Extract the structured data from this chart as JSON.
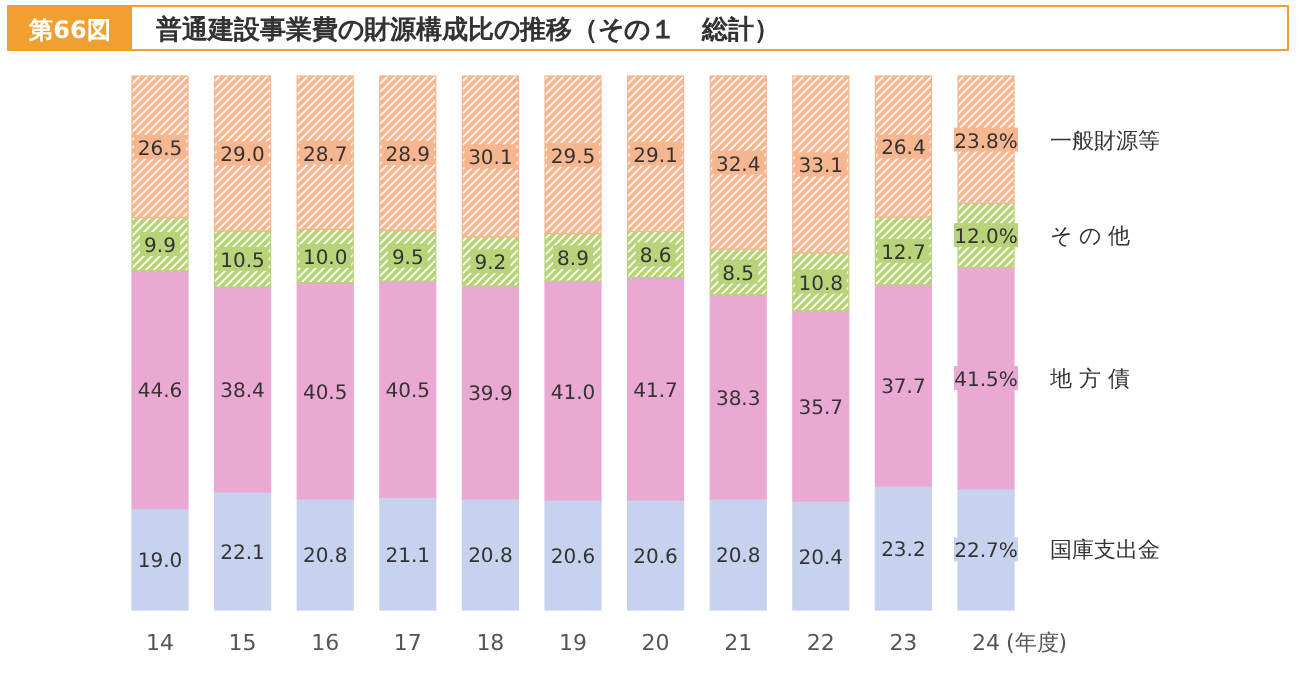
{
  "chart_data": {
    "type": "bar",
    "stacked": true,
    "title": "普通建設事業費の財源構成比の推移（その１　総計）",
    "xlabel": "(年度)",
    "annotations": [
      "第66図"
    ],
    "legend": "right",
    "categories": [
      "14",
      "15",
      "16",
      "17",
      "18",
      "19",
      "20",
      "21",
      "22",
      "23",
      "24"
    ],
    "series": [
      {
        "name": "国庫支出金",
        "color": "#c7d3ee",
        "values": [
          19.0,
          22.1,
          20.8,
          21.1,
          20.8,
          20.6,
          20.6,
          20.8,
          20.4,
          23.2,
          22.7
        ],
        "value_labels": [
          "19.0",
          "22.1",
          "20.8",
          "21.1",
          "20.8",
          "20.6",
          "20.6",
          "20.8",
          "20.4",
          "23.2",
          "22.7%"
        ]
      },
      {
        "name": "地 方 債",
        "color": "#eaa9d2",
        "values": [
          44.6,
          38.4,
          40.5,
          40.5,
          39.9,
          41.0,
          41.7,
          38.3,
          35.7,
          37.7,
          41.5
        ],
        "value_labels": [
          "44.6",
          "38.4",
          "40.5",
          "40.5",
          "39.9",
          "41.0",
          "41.7",
          "38.3",
          "35.7",
          "37.7",
          "41.5%"
        ]
      },
      {
        "name": "そ の 他",
        "color": "#b9d37a",
        "values": [
          9.9,
          10.5,
          10.0,
          9.5,
          9.2,
          8.9,
          8.6,
          8.5,
          10.8,
          12.7,
          12.0
        ],
        "value_labels": [
          "9.9",
          "10.5",
          "10.0",
          "9.5",
          "9.2",
          "8.9",
          "8.6",
          "8.5",
          "10.8",
          "12.7",
          "12.0%"
        ]
      },
      {
        "name": "一般財源等",
        "color": "#f6b690",
        "values": [
          26.5,
          29.0,
          28.7,
          28.9,
          30.1,
          29.5,
          29.1,
          32.4,
          33.1,
          26.4,
          23.8
        ],
        "value_labels": [
          "26.5",
          "29.0",
          "28.7",
          "28.9",
          "30.1",
          "29.5",
          "29.1",
          "32.4",
          "33.1",
          "26.4",
          "23.8%"
        ]
      }
    ]
  }
}
